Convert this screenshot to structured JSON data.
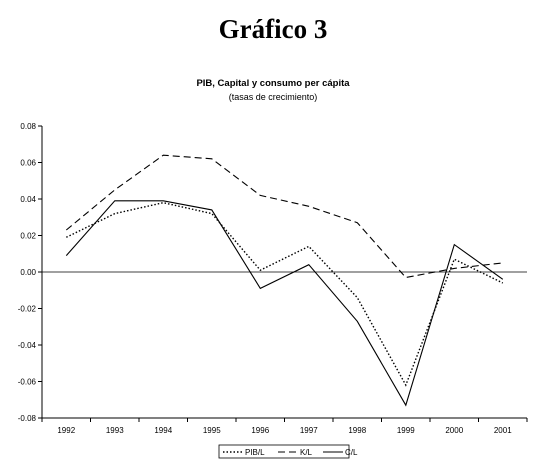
{
  "page": {
    "heading": "Gráfico 3"
  },
  "chart_data": {
    "type": "line",
    "title": "PIB, Capital y consumo per cápita",
    "subtitle": "(tasas de crecimiento)",
    "xlabel": "",
    "ylabel": "",
    "categories": [
      "1992",
      "1993",
      "1994",
      "1995",
      "1996",
      "1997",
      "1998",
      "1999",
      "2000",
      "2001"
    ],
    "ylim": [
      -0.08,
      0.08
    ],
    "yticks": [
      "0.08",
      "0.06",
      "0.04",
      "0.02",
      "0.00",
      "-0.02",
      "-0.04",
      "-0.06",
      "-0.08"
    ],
    "grid": false,
    "legend_position": "bottom-center",
    "series": [
      {
        "name": "PIB/L",
        "style": "dotted",
        "color": "#000000",
        "values": [
          0.019,
          0.032,
          0.038,
          0.032,
          0.001,
          0.014,
          -0.014,
          -0.062,
          0.007,
          -0.006
        ]
      },
      {
        "name": "K/L",
        "style": "dashed",
        "color": "#000000",
        "values": [
          0.023,
          0.045,
          0.064,
          0.062,
          0.042,
          0.036,
          0.027,
          -0.003,
          0.002,
          0.005
        ]
      },
      {
        "name": "C/L",
        "style": "solid",
        "color": "#000000",
        "values": [
          0.009,
          0.039,
          0.039,
          0.034,
          -0.009,
          0.004,
          -0.027,
          -0.073,
          0.015,
          -0.004
        ]
      }
    ]
  }
}
